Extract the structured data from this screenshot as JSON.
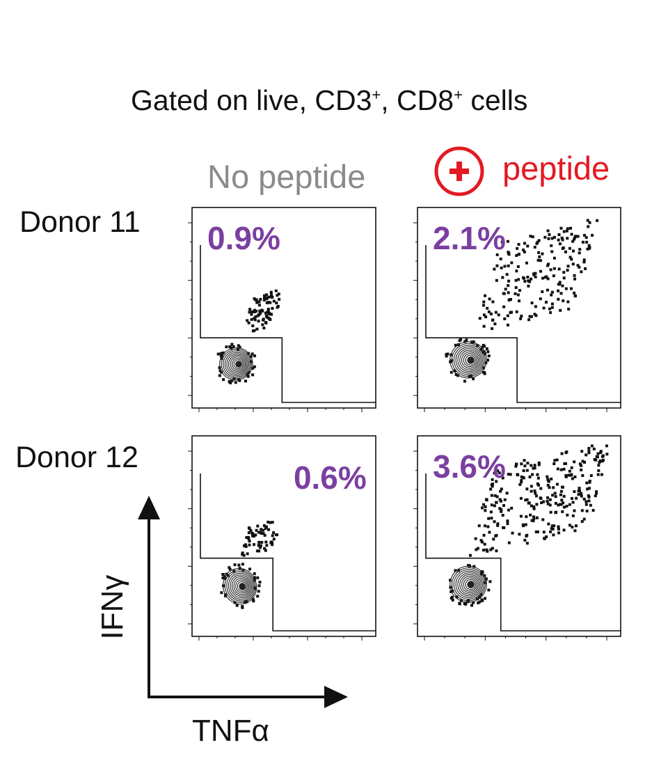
{
  "figure": {
    "title": "Gated on live, CD3",
    "title_sup1": "+",
    "title_mid": ", CD8",
    "title_sup2": "+",
    "title_end": " cells"
  },
  "chart_data": {
    "type": "scatter",
    "columns": [
      "No peptide",
      "peptide"
    ],
    "column_colors": {
      "No peptide": "#8a8a8a",
      "peptide": "#e21a22"
    },
    "peptide_icon": "plus-in-circle-icon",
    "rows": [
      "Donor 11",
      "Donor 12"
    ],
    "xlabel": "TNFα",
    "ylabel": "IFNγ",
    "percent_color": "#7b3fa0",
    "axes_range": {
      "x": [
        0,
        1
      ],
      "y": [
        0,
        1
      ]
    },
    "panels": [
      {
        "row": "Donor 11",
        "column": "No peptide",
        "gate_percent": "0.9%",
        "label_position": "top-left",
        "gate_x": 0.49,
        "gate_y": 0.35,
        "population_center": [
          0.24,
          0.22
        ],
        "population_spread": [
          0.09,
          0.08
        ],
        "positive_events": 80,
        "positive_spread": [
          0.28,
          0.38
        ]
      },
      {
        "row": "Donor 11",
        "column": "peptide",
        "gate_percent": "2.1%",
        "label_position": "top-left",
        "gate_x": 0.49,
        "gate_y": 0.35,
        "population_center": [
          0.25,
          0.24
        ],
        "population_spread": [
          0.09,
          0.09
        ],
        "positive_events": 200,
        "positive_spread": [
          0.85,
          0.95
        ]
      },
      {
        "row": "Donor 12",
        "column": "No peptide",
        "gate_percent": "0.6%",
        "label_position": "top-right",
        "gate_x": 0.44,
        "gate_y": 0.39,
        "population_center": [
          0.26,
          0.25
        ],
        "population_spread": [
          0.09,
          0.09
        ],
        "positive_events": 60,
        "positive_spread": [
          0.3,
          0.35
        ]
      },
      {
        "row": "Donor 12",
        "column": "peptide",
        "gate_percent": "3.6%",
        "label_position": "top-left",
        "gate_x": 0.41,
        "gate_y": 0.39,
        "population_center": [
          0.25,
          0.26
        ],
        "population_spread": [
          0.09,
          0.09
        ],
        "positive_events": 280,
        "positive_spread": [
          0.95,
          1.0
        ]
      }
    ]
  }
}
